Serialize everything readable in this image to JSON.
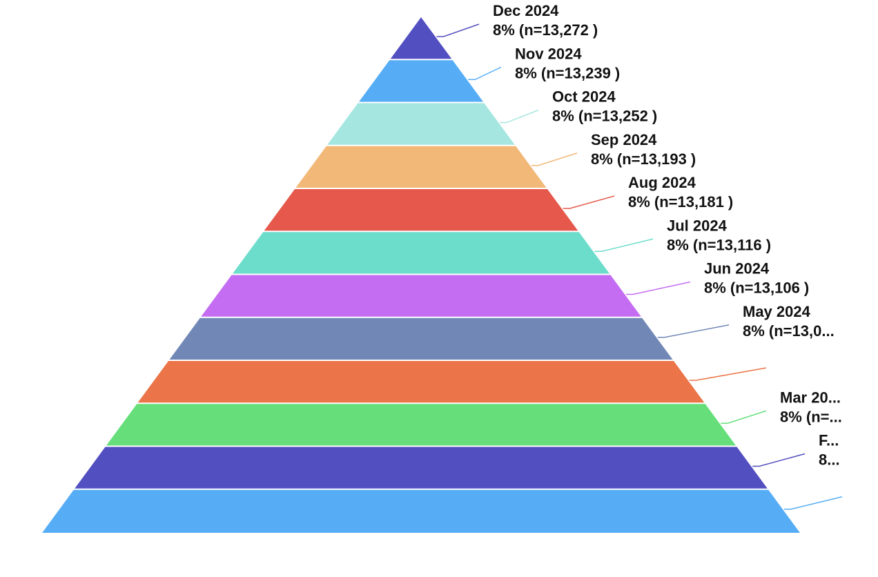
{
  "chart_data": {
    "type": "pyramid",
    "stages": [
      {
        "label": "Dec 2024",
        "value_text": "8% (n=13,272 )",
        "percent": 8,
        "n": 13272,
        "color": "#524FC1"
      },
      {
        "label": "Nov 2024",
        "value_text": "8% (n=13,239 )",
        "percent": 8,
        "n": 13239,
        "color": "#56ADF6"
      },
      {
        "label": "Oct 2024",
        "value_text": "8% (n=13,252 )",
        "percent": 8,
        "n": 13252,
        "color": "#A6E6E0"
      },
      {
        "label": "Sep 2024",
        "value_text": "8% (n=13,193 )",
        "percent": 8,
        "n": 13193,
        "color": "#F1B878"
      },
      {
        "label": "Aug 2024",
        "value_text": "8% (n=13,181 )",
        "percent": 8,
        "n": 13181,
        "color": "#E5584B"
      },
      {
        "label": "Jul 2024",
        "value_text": "8% (n=13,116 )",
        "percent": 8,
        "n": 13116,
        "color": "#6CDDCB"
      },
      {
        "label": "Jun 2024",
        "value_text": "8% (n=13,106 )",
        "percent": 8,
        "n": 13106,
        "color": "#C46DF2"
      },
      {
        "label": "May 2024",
        "value_text": "8% (n=13,0...",
        "percent": 8,
        "n": null,
        "color": "#7188B6"
      },
      {
        "label": "",
        "value_text": "",
        "percent": null,
        "n": null,
        "color": "#EB7448"
      },
      {
        "label": "Mar 20...",
        "value_text": "8% (n=...",
        "percent": 8,
        "n": null,
        "color": "#66DF7B"
      },
      {
        "label": "F...",
        "value_text": "8...",
        "percent": null,
        "n": null,
        "color": "#524FC1"
      },
      {
        "label": "",
        "value_text": "",
        "percent": null,
        "n": null,
        "color": "#56ADF6"
      }
    ]
  }
}
